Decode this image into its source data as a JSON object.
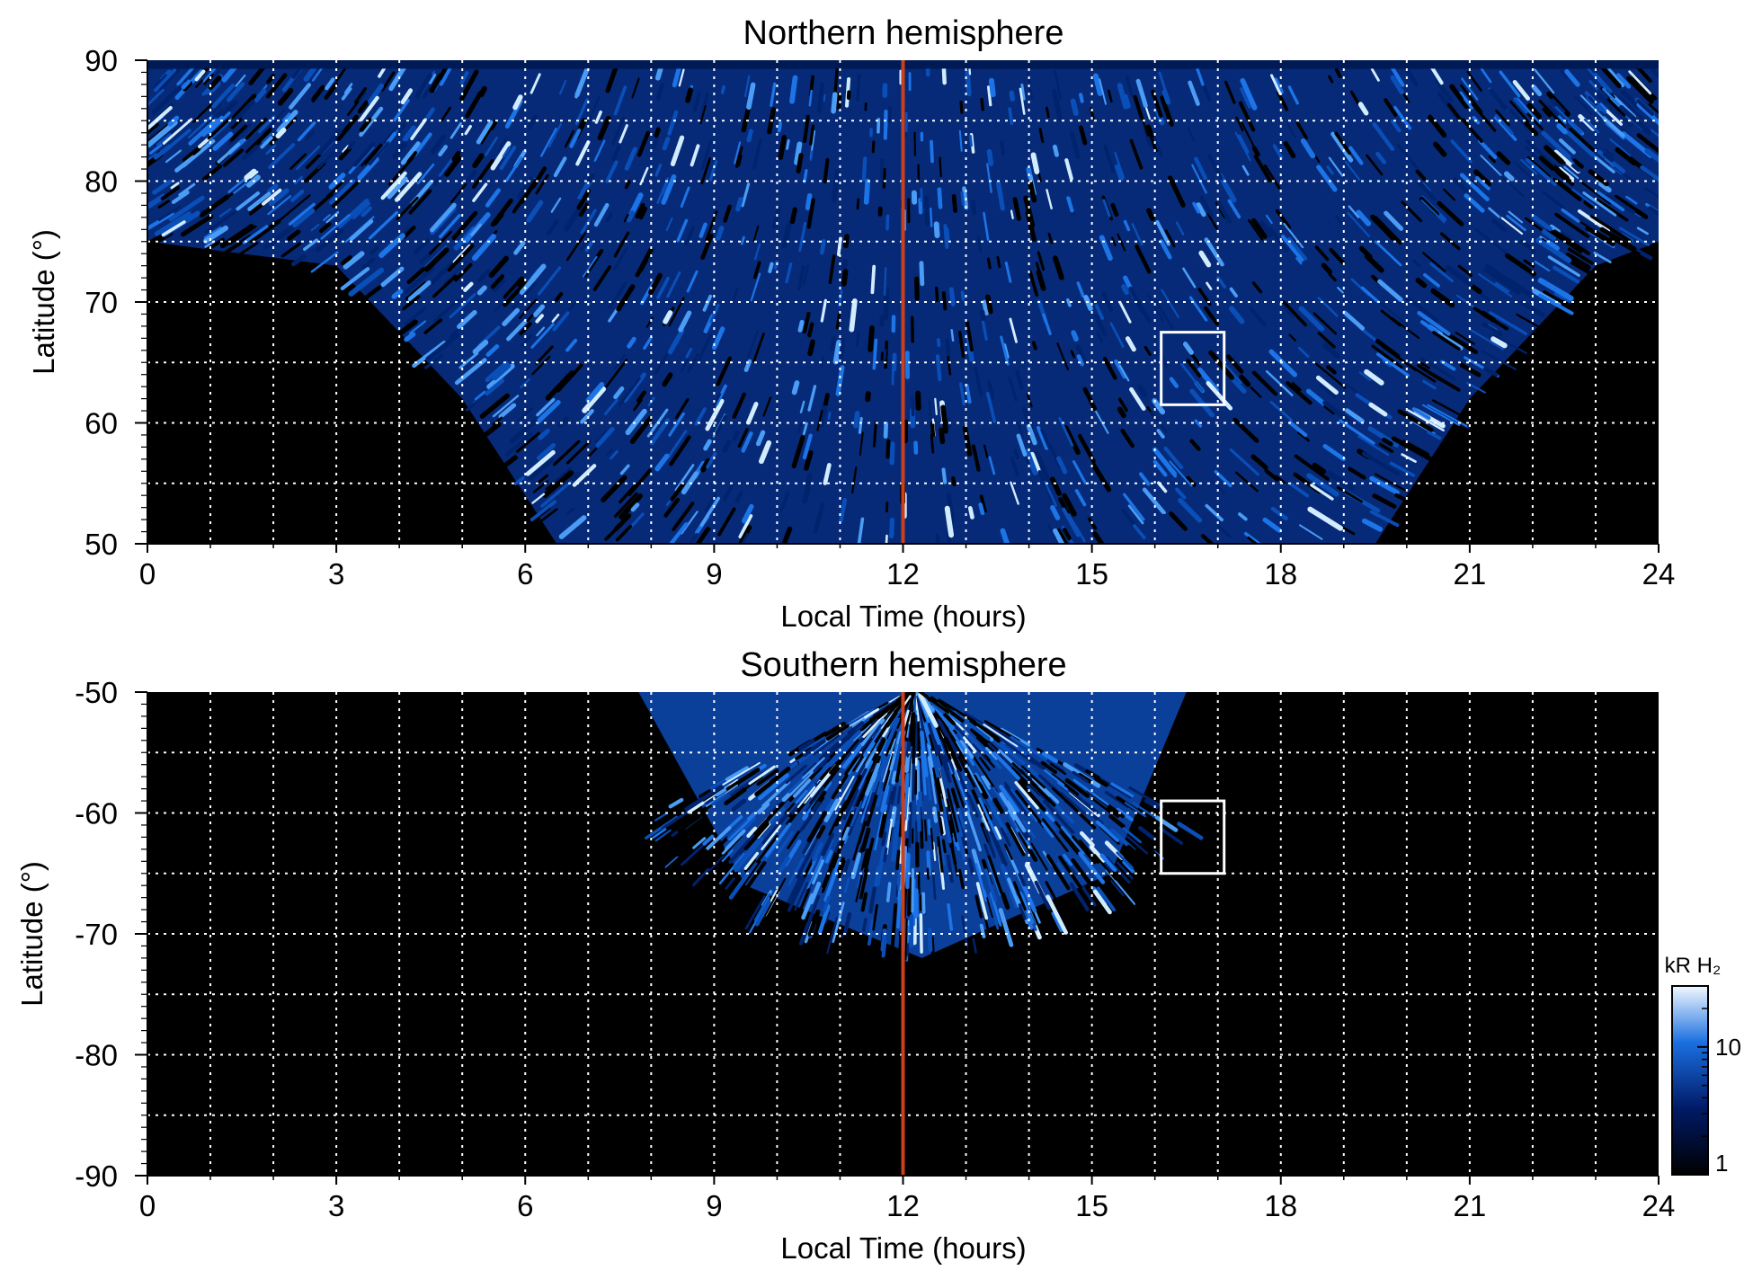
{
  "colors": {
    "background": "#000000",
    "aurora_dark": "#001a66",
    "aurora_mid": "#1a6fe0",
    "aurora_light": "#e6f4ff",
    "noon_line": "#c8401c",
    "grid": "#ffffff",
    "box": "#ffffff"
  },
  "chart_data": [
    {
      "type": "heatmap",
      "title": "Northern hemisphere",
      "xlabel": "Local Time (hours)",
      "ylabel": "Latitude (°)",
      "xlim": [
        0,
        24
      ],
      "ylim": [
        50,
        90
      ],
      "xticks": [
        "0",
        "3",
        "6",
        "9",
        "12",
        "15",
        "18",
        "21",
        "24"
      ],
      "yticks": [
        "50",
        "60",
        "70",
        "80",
        "90"
      ],
      "x_gridlines": [
        1,
        2,
        3,
        4,
        5,
        6,
        7,
        8,
        9,
        10,
        11,
        12,
        13,
        14,
        15,
        16,
        17,
        18,
        19,
        20,
        21,
        22,
        23
      ],
      "y_gridlines": [
        55,
        60,
        65,
        70,
        75,
        80,
        85
      ],
      "noon_marker_lt": 12,
      "highlight_box": {
        "lt": [
          16.1,
          17.1
        ],
        "lat": [
          61.5,
          67.5
        ]
      },
      "coverage_lower_boundary_lat": [
        {
          "lt": 0,
          "lat": 75
        },
        {
          "lt": 3,
          "lat": 73
        },
        {
          "lt": 5,
          "lat": 62
        },
        {
          "lt": 6.5,
          "lat": 50
        },
        {
          "lt": 19.5,
          "lat": 50
        },
        {
          "lt": 21,
          "lat": 62
        },
        {
          "lt": 23,
          "lat": 73
        },
        {
          "lt": 24,
          "lat": 75
        }
      ],
      "emission_scale_kR": [
        1,
        30
      ]
    },
    {
      "type": "heatmap",
      "title": "Southern hemisphere",
      "xlabel": "Local Time (hours)",
      "ylabel": "Latitude (°)",
      "xlim": [
        0,
        24
      ],
      "ylim": [
        -90,
        -50
      ],
      "xticks": [
        "0",
        "3",
        "6",
        "9",
        "12",
        "15",
        "18",
        "21",
        "24"
      ],
      "yticks": [
        "-50",
        "-60",
        "-70",
        "-80",
        "-90"
      ],
      "x_gridlines": [
        1,
        2,
        3,
        4,
        5,
        6,
        7,
        8,
        9,
        10,
        11,
        12,
        13,
        14,
        15,
        16,
        17,
        18,
        19,
        20,
        21,
        22,
        23
      ],
      "y_gridlines": [
        -55,
        -60,
        -65,
        -70,
        -75,
        -80,
        -85
      ],
      "noon_marker_lt": 12,
      "highlight_box": {
        "lt": [
          16.1,
          17.1
        ],
        "lat": [
          -65,
          -59
        ]
      },
      "coverage_boundary": [
        {
          "lt": 7.8,
          "lat": -50
        },
        {
          "lt": 9.5,
          "lat": -66
        },
        {
          "lt": 12.3,
          "lat": -72
        },
        {
          "lt": 15.3,
          "lat": -65
        },
        {
          "lt": 16.5,
          "lat": -50
        }
      ],
      "emission_scale_kR": [
        1,
        30
      ]
    }
  ],
  "colorbar": {
    "label": "kR H₂",
    "ticks": [
      "10",
      "1"
    ],
    "tick_values": [
      10,
      1
    ],
    "range": [
      1,
      30
    ],
    "scale": "log"
  }
}
